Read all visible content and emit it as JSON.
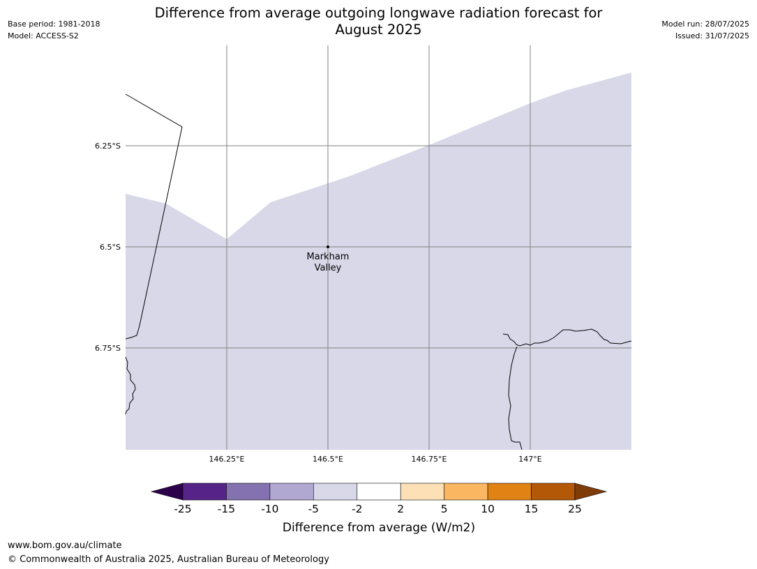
{
  "header": {
    "title_line1": "Difference from average outgoing longwave radiation forecast for",
    "title_line2": "August 2025",
    "base_period": "Base period: 1981-2018",
    "model": "Model: ACCESS-S2",
    "model_run": "Model run: 28/07/2025",
    "issued": "Issued: 31/07/2025"
  },
  "map": {
    "longitude_ticks": [
      {
        "value": 146.25,
        "label": "146.25°E"
      },
      {
        "value": 146.5,
        "label": "146.5°E"
      },
      {
        "value": 146.75,
        "label": "146.75°E"
      },
      {
        "value": 147.0,
        "label": "147°E"
      }
    ],
    "latitude_ticks": [
      {
        "value": -6.25,
        "label": "6.25°S"
      },
      {
        "value": -6.5,
        "label": "6.5°S"
      },
      {
        "value": -6.75,
        "label": "6.75°S"
      }
    ],
    "place": {
      "name_line1": "Markham",
      "name_line2": "Valley",
      "lon": 146.5,
      "lat": -6.5
    },
    "shaded_category": "-5 to -2",
    "shaded_color": "#d8d8e9",
    "gridline_color": "#808080"
  },
  "colorbar": {
    "title": "Difference from average (W/m2)",
    "boundaries": [
      "-25",
      "-15",
      "-10",
      "-5",
      "-2",
      "2",
      "5",
      "10",
      "15",
      "25"
    ],
    "colors": [
      "#562488",
      "#8472b0",
      "#b1a8d1",
      "#d8d8e9",
      "#ffffff",
      "#fde0b6",
      "#fbb662",
      "#e08214",
      "#b35806"
    ],
    "under_color": "#2d004b",
    "over_color": "#7f3b08"
  },
  "footer": {
    "url": "www.bom.gov.au/climate",
    "copyright": "© Commonwealth of Australia 2025, Australian Bureau of Meteorology"
  }
}
